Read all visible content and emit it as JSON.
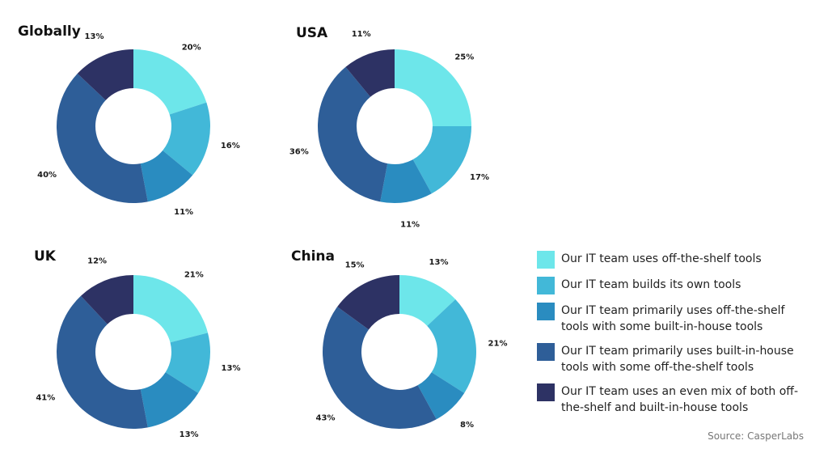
{
  "categories": [
    "Our IT team uses off-the-shelf tools",
    "Our IT team builds its own tools",
    "Our IT team primarily uses off-the-shelf tools with some built-in-house tools",
    "Our IT team primarily uses built-in-house tools with some off-the-shelf tools",
    "Our IT team uses an even mix of both off-the-shelf and built-in-house tools"
  ],
  "colors": [
    "#6de6ea",
    "#42b8d8",
    "#2a8cc0",
    "#2e5e98",
    "#2d3264"
  ],
  "chart_data": [
    {
      "type": "pie",
      "title": "Globally",
      "values": [
        20,
        16,
        11,
        40,
        13
      ]
    },
    {
      "type": "pie",
      "title": "USA",
      "values": [
        25,
        17,
        11,
        36,
        11
      ]
    },
    {
      "type": "pie",
      "title": "UK",
      "values": [
        21,
        13,
        13,
        41,
        12
      ]
    },
    {
      "type": "pie",
      "title": "China",
      "values": [
        13,
        21,
        8,
        43,
        15
      ]
    }
  ],
  "source": "Source:  CasperLabs"
}
